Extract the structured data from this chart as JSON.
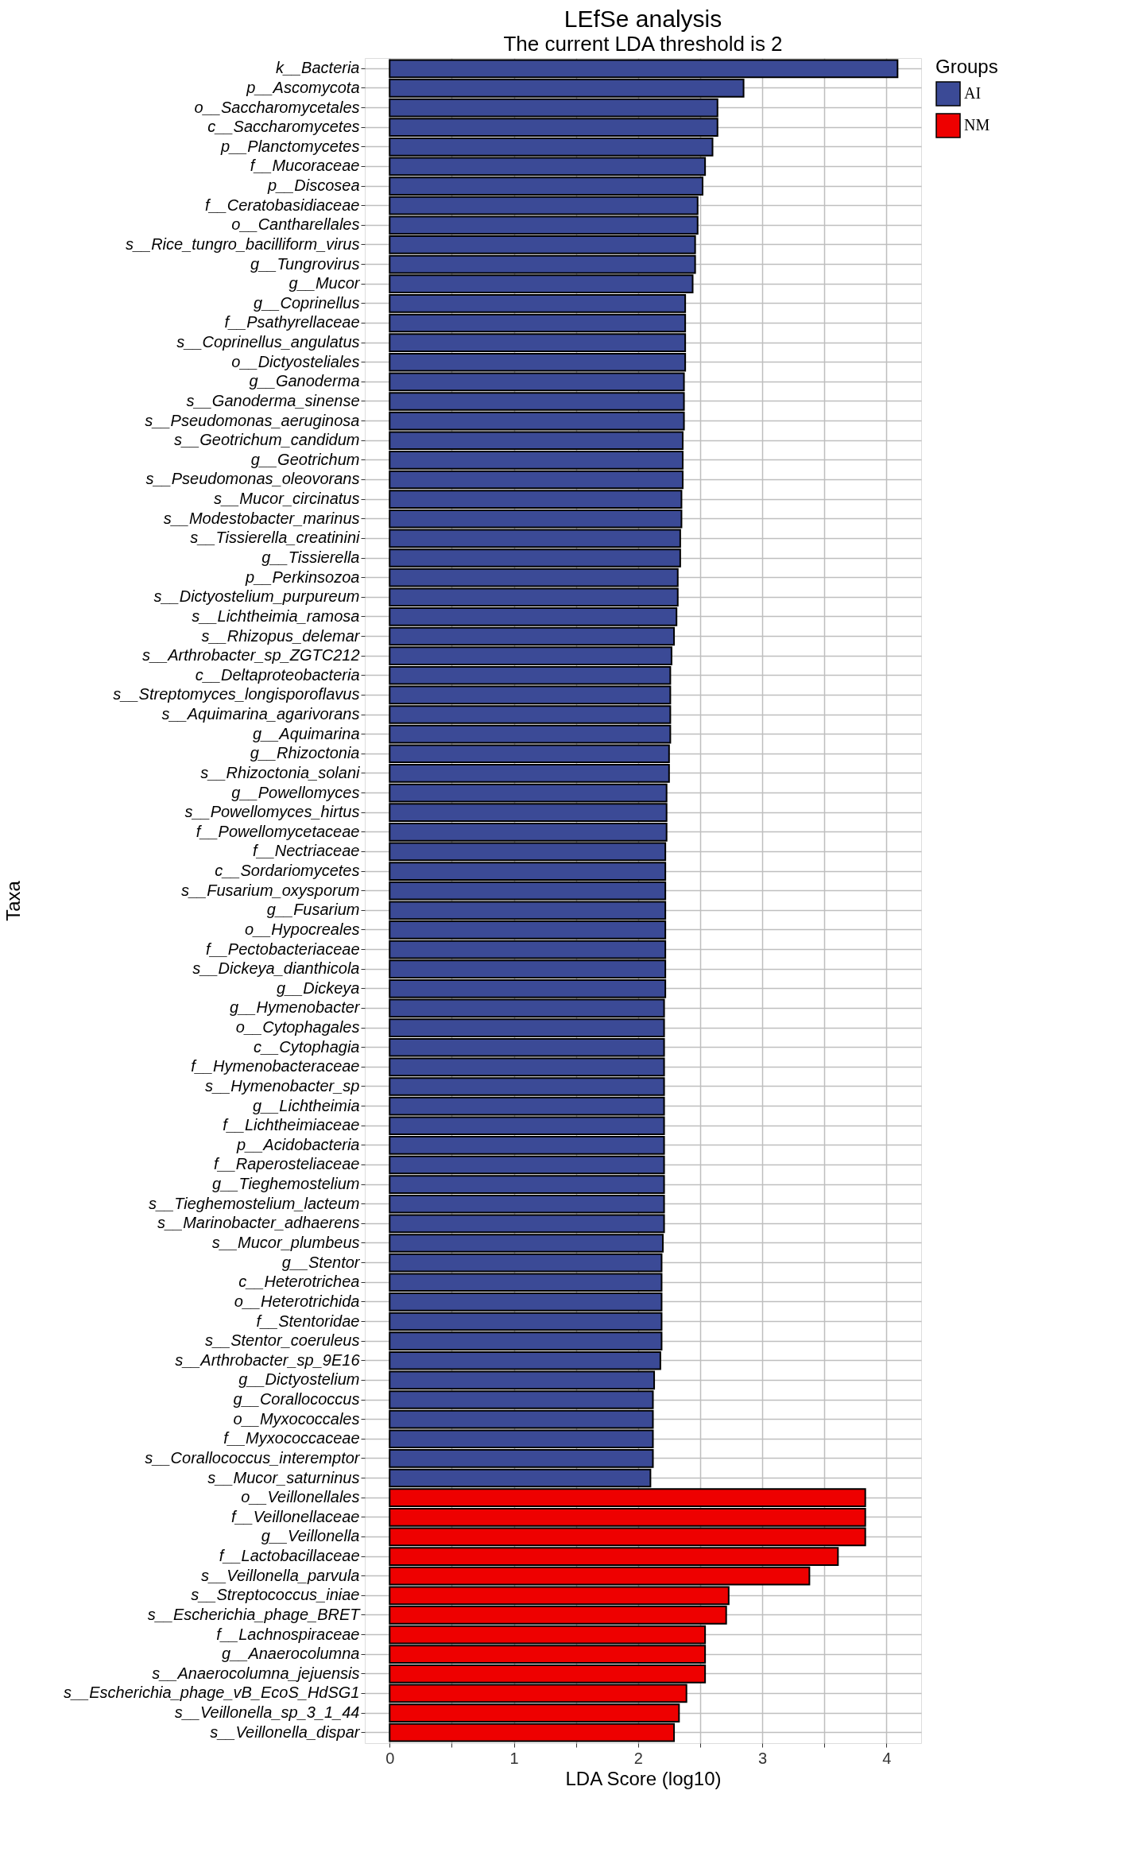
{
  "chart_data": {
    "type": "bar",
    "orientation": "horizontal",
    "title": "LEfSe analysis",
    "subtitle": "The current LDA threshold is 2",
    "xlabel": "LDA Score (log10)",
    "ylabel": "Taxa",
    "legend_title": "Groups",
    "legend": "right",
    "grid": true,
    "categories": [
      "k__Bacteria",
      "p__Ascomycota",
      "o__Saccharomycetales",
      "c__Saccharomycetes",
      "p__Planctomycetes",
      "f__Mucoraceae",
      "p__Discosea",
      "f__Ceratobasidiaceae",
      "o__Cantharellales",
      "s__Rice_tungro_bacilliform_virus",
      "g__Tungrovirus",
      "g__Mucor",
      "g__Coprinellus",
      "f__Psathyrellaceae",
      "s__Coprinellus_angulatus",
      "o__Dictyosteliales",
      "g__Ganoderma",
      "s__Ganoderma_sinense",
      "s__Pseudomonas_aeruginosa",
      "s__Geotrichum_candidum",
      "g__Geotrichum",
      "s__Pseudomonas_oleovorans",
      "s__Mucor_circinatus",
      "s__Modestobacter_marinus",
      "s__Tissierella_creatinini",
      "g__Tissierella",
      "p__Perkinsozoa",
      "s__Dictyostelium_purpureum",
      "s__Lichtheimia_ramosa",
      "s__Rhizopus_delemar",
      "s__Arthrobacter_sp_ZGTC212",
      "c__Deltaproteobacteria",
      "s__Streptomyces_longisporoflavus",
      "s__Aquimarina_agarivorans",
      "g__Aquimarina",
      "g__Rhizoctonia",
      "s__Rhizoctonia_solani",
      "g__Powellomyces",
      "s__Powellomyces_hirtus",
      "f__Powellomycetaceae",
      "f__Nectriaceae",
      "c__Sordariomycetes",
      "s__Fusarium_oxysporum",
      "g__Fusarium",
      "o__Hypocreales",
      "f__Pectobacteriaceae",
      "s__Dickeya_dianthicola",
      "g__Dickeya",
      "g__Hymenobacter",
      "o__Cytophagales",
      "c__Cytophagia",
      "f__Hymenobacteraceae",
      "s__Hymenobacter_sp",
      "g__Lichtheimia",
      "f__Lichtheimiaceae",
      "p__Acidobacteria",
      "f__Raperosteliaceae",
      "g__Tieghemostelium",
      "s__Tieghemostelium_lacteum",
      "s__Marinobacter_adhaerens",
      "s__Mucor_plumbeus",
      "g__Stentor",
      "c__Heterotrichea",
      "o__Heterotrichida",
      "f__Stentoridae",
      "s__Stentor_coeruleus",
      "s__Arthrobacter_sp_9E16",
      "g__Dictyostelium",
      "g__Corallococcus",
      "o__Myxococcales",
      "f__Myxococcaceae",
      "s__Corallococcus_interemptor",
      "s__Mucor_saturninus",
      "o__Veillonellales",
      "f__Veillonellaceae",
      "g__Veillonella",
      "f__Lactobacillaceae",
      "s__Veillonella_parvula",
      "s__Streptococcus_iniae",
      "s__Escherichia_phage_BRET",
      "f__Lachnospiraceae",
      "g__Anaerocolumna",
      "s__Anaerocolumna_jejuensis",
      "s__Escherichia_phage_vB_EcoS_HdSG1",
      "s__Veillonella_sp_3_1_44",
      "s__Veillonella_dispar"
    ],
    "series": [
      {
        "name": "AI",
        "color": "#3b4a96",
        "values": [
          4.09,
          2.85,
          2.64,
          2.64,
          2.6,
          2.54,
          2.52,
          2.48,
          2.48,
          2.46,
          2.46,
          2.44,
          2.38,
          2.38,
          2.38,
          2.38,
          2.37,
          2.37,
          2.37,
          2.36,
          2.36,
          2.36,
          2.35,
          2.35,
          2.34,
          2.34,
          2.32,
          2.32,
          2.31,
          2.29,
          2.27,
          2.26,
          2.26,
          2.26,
          2.26,
          2.25,
          2.25,
          2.23,
          2.23,
          2.23,
          2.22,
          2.22,
          2.22,
          2.22,
          2.22,
          2.22,
          2.22,
          2.22,
          2.21,
          2.21,
          2.21,
          2.21,
          2.21,
          2.21,
          2.21,
          2.21,
          2.21,
          2.21,
          2.21,
          2.21,
          2.2,
          2.19,
          2.19,
          2.19,
          2.19,
          2.19,
          2.18,
          2.13,
          2.12,
          2.12,
          2.12,
          2.12,
          2.1,
          null,
          null,
          null,
          null,
          null,
          null,
          null,
          null,
          null,
          null,
          null,
          null,
          null
        ]
      },
      {
        "name": "NM",
        "color": "#ee0000",
        "values": [
          null,
          null,
          null,
          null,
          null,
          null,
          null,
          null,
          null,
          null,
          null,
          null,
          null,
          null,
          null,
          null,
          null,
          null,
          null,
          null,
          null,
          null,
          null,
          null,
          null,
          null,
          null,
          null,
          null,
          null,
          null,
          null,
          null,
          null,
          null,
          null,
          null,
          null,
          null,
          null,
          null,
          null,
          null,
          null,
          null,
          null,
          null,
          null,
          null,
          null,
          null,
          null,
          null,
          null,
          null,
          null,
          null,
          null,
          null,
          null,
          null,
          null,
          null,
          null,
          null,
          null,
          null,
          null,
          null,
          null,
          null,
          null,
          null,
          3.83,
          3.83,
          3.83,
          3.61,
          3.38,
          2.73,
          2.71,
          2.54,
          2.54,
          2.54,
          2.39,
          2.33,
          2.29
        ]
      }
    ],
    "xlim": [
      -0.2,
      4.28
    ],
    "xticks": [
      0,
      {
        "value": 0.5,
        "label": null
      },
      1,
      {
        "value": 1.5,
        "label": null
      },
      2,
      {
        "value": 2.5,
        "label": null
      },
      3,
      {
        "value": 3.5,
        "label": null
      },
      4
    ]
  }
}
